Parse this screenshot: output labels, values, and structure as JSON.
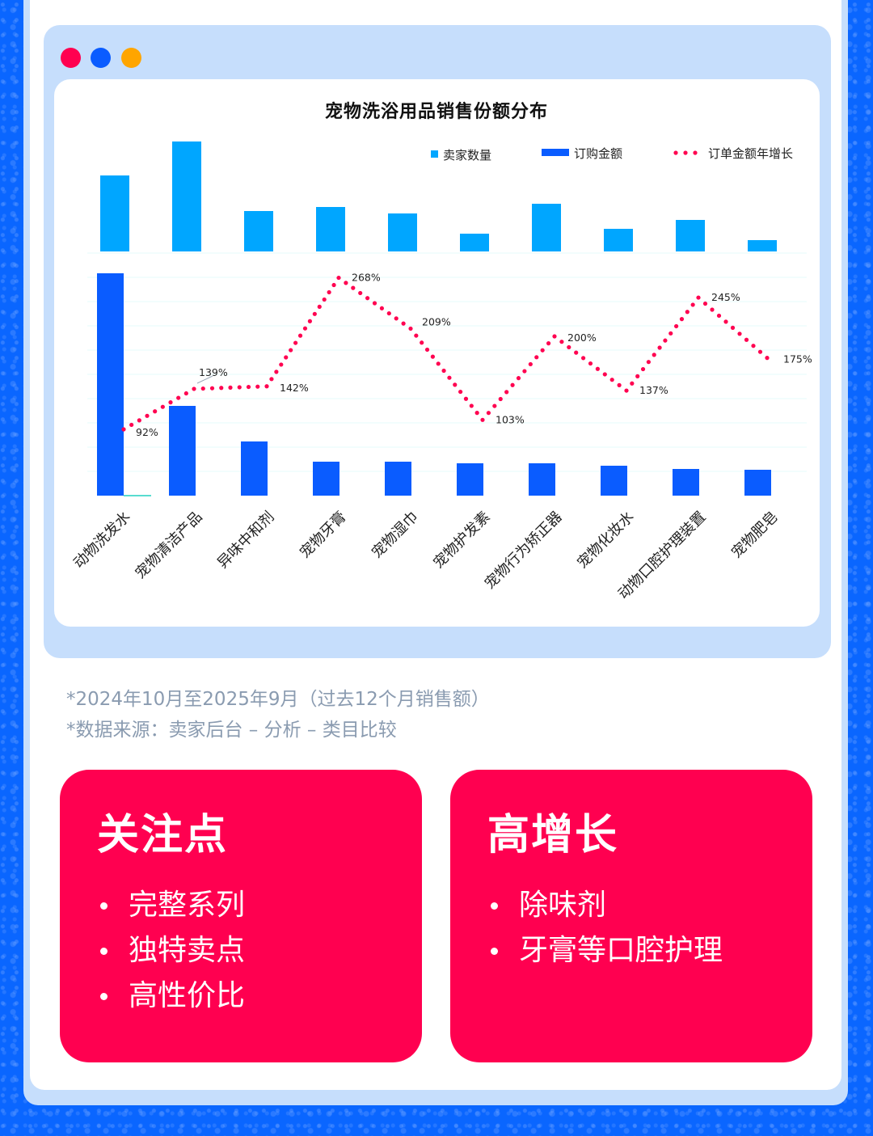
{
  "window_dots": [
    {
      "name": "red-dot",
      "color": "#ff0050"
    },
    {
      "name": "blue-dot",
      "color": "#0a5cff"
    },
    {
      "name": "orange-dot",
      "color": "#ffa500"
    }
  ],
  "chart_data": {
    "type": "bar+line",
    "title": "宠物洗浴用品销售份额分布",
    "categories": [
      "动物洗发水",
      "宠物清洁产品",
      "异味中和剂",
      "宠物牙膏",
      "宠物湿巾",
      "宠物护发素",
      "宠物行为矫正器",
      "宠物化妆水",
      "动物口腔护理装置",
      "宠物肥皂"
    ],
    "legend": [
      "卖家数量",
      "订购金额",
      "订单金额年增长"
    ],
    "legend_position": "top-right",
    "series": [
      {
        "name": "卖家数量",
        "type": "bar",
        "color": "#00a6ff",
        "values": [
          94,
          136,
          50,
          55,
          47,
          22,
          59,
          28,
          39,
          14
        ],
        "unit": "relative"
      },
      {
        "name": "订购金额",
        "type": "bar",
        "color": "#0a5cff",
        "values": [
          275,
          111,
          67,
          42,
          42,
          40,
          40,
          37,
          33,
          32
        ],
        "unit": "relative"
      },
      {
        "name": "订单金额年增长",
        "type": "line-dotted",
        "color": "#ff0050",
        "values": [
          92,
          139,
          142,
          268,
          209,
          103,
          200,
          137,
          245,
          175
        ],
        "labels": [
          "92%",
          "139%",
          "142%",
          "268%",
          "209%",
          "103%",
          "200%",
          "137%",
          "245%",
          "175%"
        ]
      }
    ],
    "xlabel": "",
    "ylabel": "",
    "grid": true,
    "axis_ticks_visible": false
  },
  "notes": {
    "line1": "*2024年10月至2025年9月（过去12个月销售额）",
    "line2": "*数据来源：卖家后台 – 分析 – 类目比较"
  },
  "cards": [
    {
      "title": "关注点",
      "items": [
        "完整系列",
        "独特卖点",
        "高性价比"
      ]
    },
    {
      "title": "高增长",
      "items": [
        "除味剂",
        "牙膏等口腔护理"
      ]
    }
  ]
}
